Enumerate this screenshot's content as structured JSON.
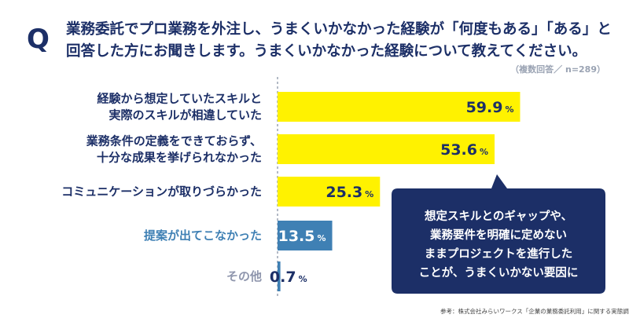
{
  "question": {
    "marker": "Q",
    "line1": "業務委託でプロ業務を外注し、うまくいかなかった経験が「何度もある」「ある」と",
    "line2": "回答した方にお聞きします。うまくいかなかった経験について教えてください。"
  },
  "note": "（複数回答／ n=289）",
  "callout_lines": [
    "想定スキルとのギャップや、",
    "業務要件を明確に定めない",
    "ままプロジェクトを進行した",
    "ことが、うまくいかない要因に"
  ],
  "source": "参考：株式会社みらいワークス「企業の業務委託利用」に関する実態調査",
  "colors": {
    "navy": "#1c2f67",
    "yellow": "#fff200",
    "blue": "#3f80b4",
    "gray": "#8f96ad",
    "axis": "#9aa3b3"
  },
  "chart_data": {
    "type": "bar",
    "orientation": "horizontal",
    "unit": "%",
    "xlim": [
      0,
      100
    ],
    "categories": [
      [
        "経験から想定していたスキルと",
        "実際のスキルが相違していた"
      ],
      [
        "業務条件の定義をできておらず、",
        "十分な成果を挙げられなかった"
      ],
      [
        "コミュニケーションが取りづらかった"
      ],
      [
        "提案が出てこなかった"
      ],
      [
        "その他"
      ]
    ],
    "values": [
      59.9,
      53.6,
      25.3,
      13.5,
      0.7
    ],
    "value_labels": [
      "59.9",
      "53.6",
      "25.3",
      "13.5",
      "0.7"
    ],
    "bar_colors": [
      "#fff200",
      "#fff200",
      "#fff200",
      "#3f80b4",
      "#3f80b4"
    ],
    "label_colors": [
      "#1c2f67",
      "#1c2f67",
      "#1c2f67",
      "#3f80b4",
      "#8f96ad"
    ]
  }
}
